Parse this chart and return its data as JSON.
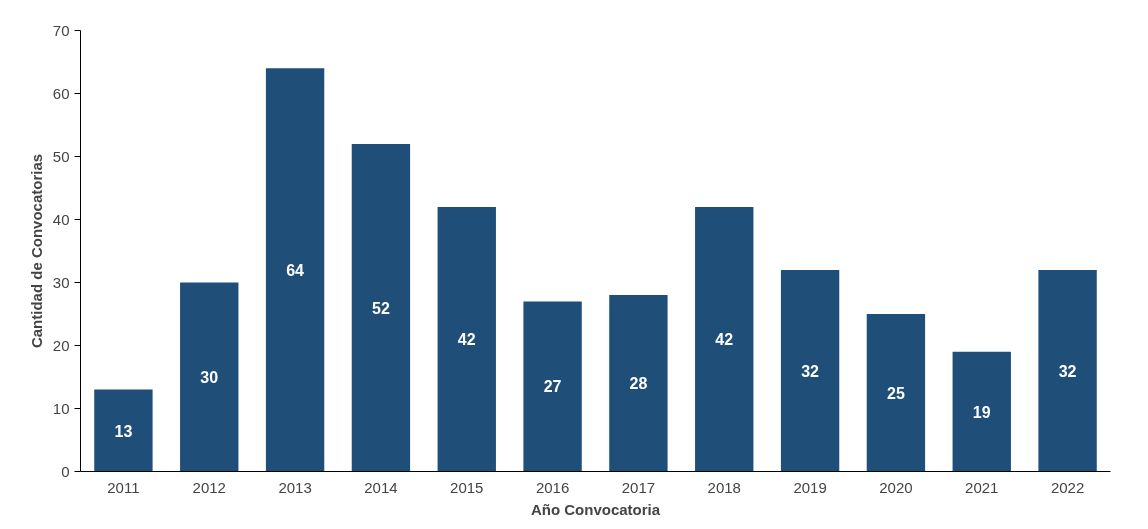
{
  "chart_data": {
    "type": "bar",
    "xlabel": "Año Convocatoria",
    "ylabel": "Cantidad de Convocatorias",
    "categories": [
      "2011",
      "2012",
      "2013",
      "2014",
      "2015",
      "2016",
      "2017",
      "2018",
      "2019",
      "2020",
      "2021",
      "2022"
    ],
    "values": [
      13,
      30,
      64,
      52,
      42,
      27,
      28,
      42,
      32,
      25,
      19,
      32
    ],
    "color": "#1f4e79",
    "ylim": [
      0,
      70
    ],
    "yticks": [
      0,
      10,
      20,
      30,
      40,
      50,
      60,
      70
    ],
    "grid": false,
    "data_labels": true
  }
}
